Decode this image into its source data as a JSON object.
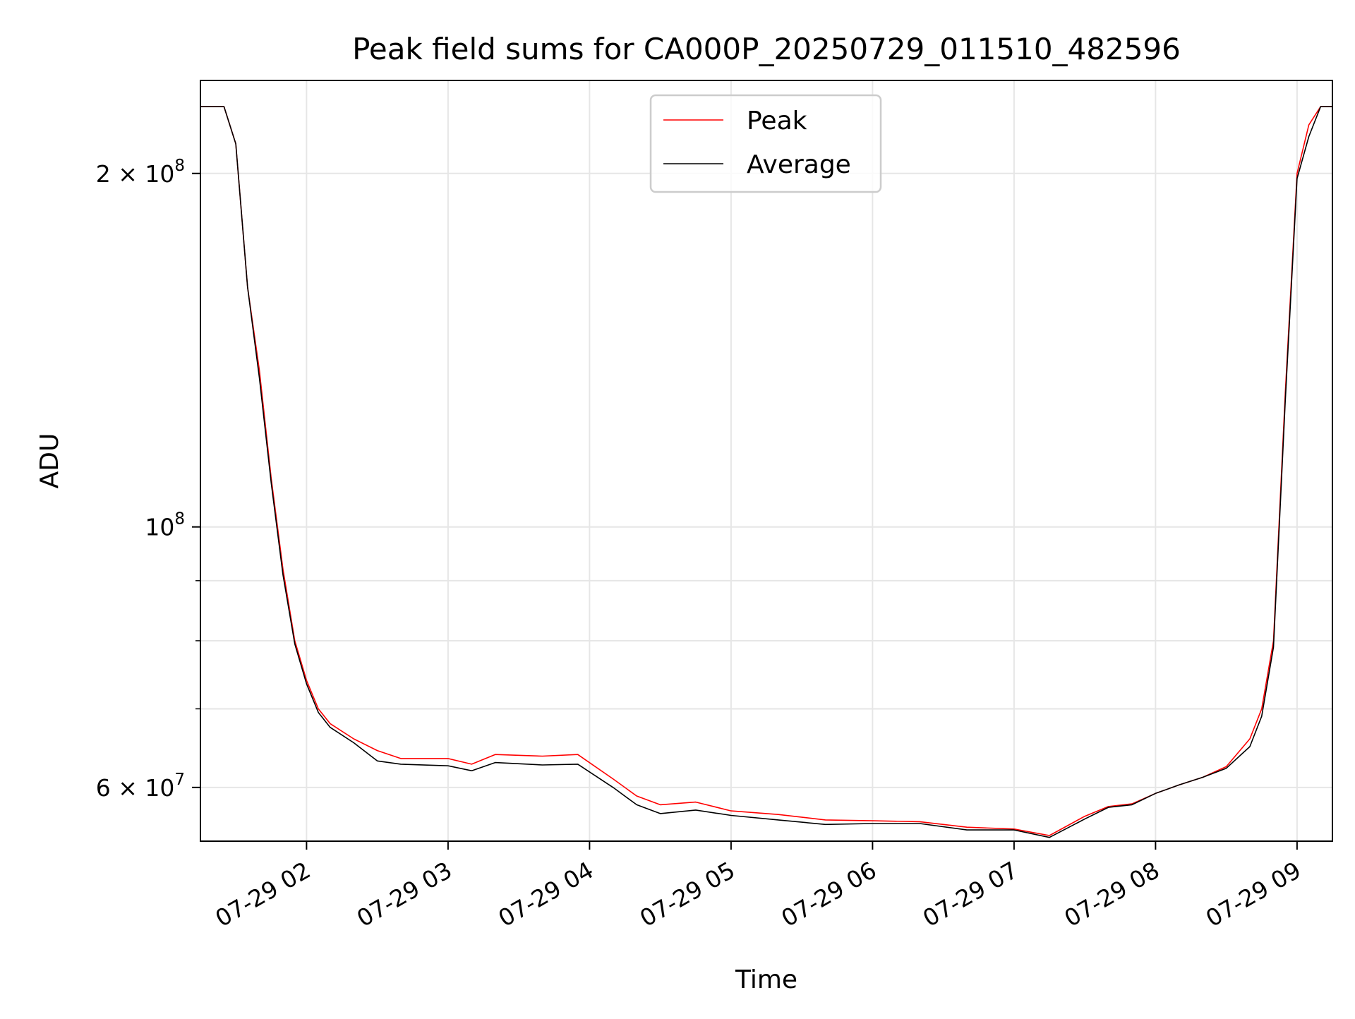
{
  "chart_data": {
    "type": "line",
    "title": "Peak field sums for CA000P_20250729_011510_482596",
    "xlabel": "Time",
    "ylabel": "ADU",
    "y_scale": "log",
    "ylim": [
      54000000,
      240000000
    ],
    "xlim": [
      "2025-07-29 01:15",
      "2025-07-29 09:15"
    ],
    "grid": true,
    "legend_position": "top-center",
    "x_ticks": [
      {
        "value": "2025-07-29 02:00",
        "label": "07-29 02"
      },
      {
        "value": "2025-07-29 03:00",
        "label": "07-29 03"
      },
      {
        "value": "2025-07-29 04:00",
        "label": "07-29 04"
      },
      {
        "value": "2025-07-29 05:00",
        "label": "07-29 05"
      },
      {
        "value": "2025-07-29 06:00",
        "label": "07-29 06"
      },
      {
        "value": "2025-07-29 07:00",
        "label": "07-29 07"
      },
      {
        "value": "2025-07-29 08:00",
        "label": "07-29 08"
      },
      {
        "value": "2025-07-29 09:00",
        "label": "07-29 09"
      }
    ],
    "y_ticks_major": [
      {
        "value": 60000000,
        "base": "6 × 10",
        "exp": "7"
      },
      {
        "value": 100000000,
        "base": "10",
        "exp": "8"
      },
      {
        "value": 200000000,
        "base": "2 × 10",
        "exp": "8"
      }
    ],
    "y_ticks_minor": [
      70000000,
      80000000,
      90000000
    ],
    "series": [
      {
        "name": "Peak",
        "color": "#ff0000",
        "x": [
          "2025-07-29 01:15",
          "2025-07-29 01:25",
          "2025-07-29 01:30",
          "2025-07-29 01:35",
          "2025-07-29 01:40",
          "2025-07-29 01:45",
          "2025-07-29 01:50",
          "2025-07-29 01:55",
          "2025-07-29 02:00",
          "2025-07-29 02:05",
          "2025-07-29 02:10",
          "2025-07-29 02:20",
          "2025-07-29 02:30",
          "2025-07-29 02:40",
          "2025-07-29 03:00",
          "2025-07-29 03:10",
          "2025-07-29 03:20",
          "2025-07-29 03:40",
          "2025-07-29 03:55",
          "2025-07-29 04:10",
          "2025-07-29 04:20",
          "2025-07-29 04:30",
          "2025-07-29 04:45",
          "2025-07-29 05:00",
          "2025-07-29 05:20",
          "2025-07-29 05:40",
          "2025-07-29 06:00",
          "2025-07-29 06:20",
          "2025-07-29 06:40",
          "2025-07-29 07:00",
          "2025-07-29 07:15",
          "2025-07-29 07:30",
          "2025-07-29 07:40",
          "2025-07-29 07:50",
          "2025-07-29 08:00",
          "2025-07-29 08:10",
          "2025-07-29 08:20",
          "2025-07-29 08:30",
          "2025-07-29 08:40",
          "2025-07-29 08:45",
          "2025-07-29 08:50",
          "2025-07-29 08:55",
          "2025-07-29 09:00",
          "2025-07-29 09:05",
          "2025-07-29 09:10",
          "2025-07-29 09:15"
        ],
        "values": [
          228000000,
          228000000,
          212000000,
          160000000,
          136000000,
          110000000,
          92000000,
          80000000,
          74000000,
          70000000,
          68000000,
          66000000,
          64500000,
          63500000,
          63500000,
          62800000,
          64000000,
          63800000,
          64000000,
          61000000,
          59000000,
          58000000,
          58300000,
          57300000,
          56900000,
          56300000,
          56200000,
          56100000,
          55500000,
          55300000,
          54600000,
          56700000,
          57800000,
          58100000,
          59300000,
          60300000,
          61200000,
          62500000,
          66000000,
          70000000,
          80000000,
          130000000,
          200000000,
          220000000,
          228000000,
          228000000
        ]
      },
      {
        "name": "Average",
        "color": "#000000",
        "x": [
          "2025-07-29 01:15",
          "2025-07-29 01:25",
          "2025-07-29 01:30",
          "2025-07-29 01:35",
          "2025-07-29 01:40",
          "2025-07-29 01:45",
          "2025-07-29 01:50",
          "2025-07-29 01:55",
          "2025-07-29 02:00",
          "2025-07-29 02:05",
          "2025-07-29 02:10",
          "2025-07-29 02:20",
          "2025-07-29 02:30",
          "2025-07-29 02:40",
          "2025-07-29 03:00",
          "2025-07-29 03:10",
          "2025-07-29 03:20",
          "2025-07-29 03:40",
          "2025-07-29 03:55",
          "2025-07-29 04:10",
          "2025-07-29 04:20",
          "2025-07-29 04:30",
          "2025-07-29 04:45",
          "2025-07-29 05:00",
          "2025-07-29 05:20",
          "2025-07-29 05:40",
          "2025-07-29 06:00",
          "2025-07-29 06:20",
          "2025-07-29 06:40",
          "2025-07-29 07:00",
          "2025-07-29 07:15",
          "2025-07-29 07:30",
          "2025-07-29 07:40",
          "2025-07-29 07:50",
          "2025-07-29 08:00",
          "2025-07-29 08:10",
          "2025-07-29 08:20",
          "2025-07-29 08:30",
          "2025-07-29 08:40",
          "2025-07-29 08:45",
          "2025-07-29 08:50",
          "2025-07-29 08:55",
          "2025-07-29 09:00",
          "2025-07-29 09:05",
          "2025-07-29 09:10",
          "2025-07-29 09:15"
        ],
        "values": [
          228000000,
          228000000,
          212000000,
          160000000,
          134000000,
          109000000,
          91000000,
          79500000,
          73500000,
          69500000,
          67500000,
          65500000,
          63200000,
          62800000,
          62600000,
          62000000,
          63000000,
          62700000,
          62800000,
          60000000,
          58000000,
          57000000,
          57400000,
          56800000,
          56300000,
          55800000,
          55900000,
          55900000,
          55200000,
          55200000,
          54400000,
          56400000,
          57700000,
          58000000,
          59300000,
          60300000,
          61200000,
          62300000,
          65000000,
          69000000,
          79000000,
          128000000,
          198000000,
          215000000,
          228000000,
          228000000
        ]
      }
    ]
  }
}
